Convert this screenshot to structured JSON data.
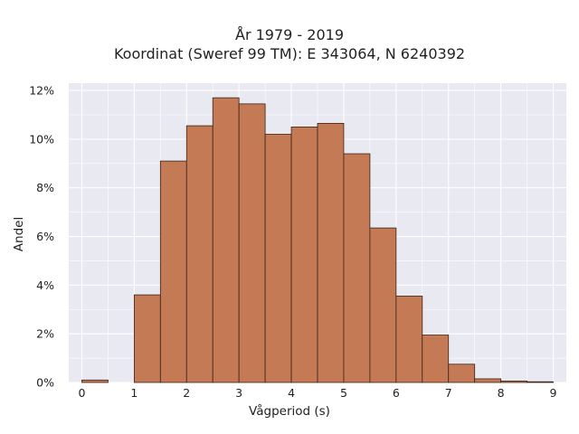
{
  "chart_data": {
    "type": "bar",
    "title": [
      "År 1979 - 2019",
      "Koordinat (Sweref 99 TM): E 343064, N 6240392"
    ],
    "xlabel": "Vågperiod (s)",
    "ylabel": "Andel",
    "bin_edges": [
      0,
      0.5,
      1,
      1.5,
      2,
      2.5,
      3,
      3.5,
      4,
      4.5,
      5,
      5.5,
      6,
      6.5,
      7,
      7.5,
      8,
      8.5,
      9
    ],
    "values": [
      0.1,
      0,
      3.6,
      9.1,
      10.55,
      11.7,
      11.45,
      10.2,
      10.5,
      10.65,
      9.4,
      6.35,
      3.55,
      1.95,
      0.75,
      0.15,
      0.06,
      0.03
    ],
    "xlim": [
      -0.25,
      9.25
    ],
    "ylim": [
      0,
      12.3
    ],
    "xticks": [
      0,
      1,
      2,
      3,
      4,
      5,
      6,
      7,
      8,
      9
    ],
    "yticks": [
      0,
      2,
      4,
      6,
      8,
      10,
      12
    ],
    "ytick_labels": [
      "0%",
      "2%",
      "4%",
      "6%",
      "8%",
      "10%",
      "12%"
    ],
    "bar_color": "#c47a55",
    "bar_edge": "#3a2418",
    "background": "#e9e9f2",
    "grid": true
  }
}
